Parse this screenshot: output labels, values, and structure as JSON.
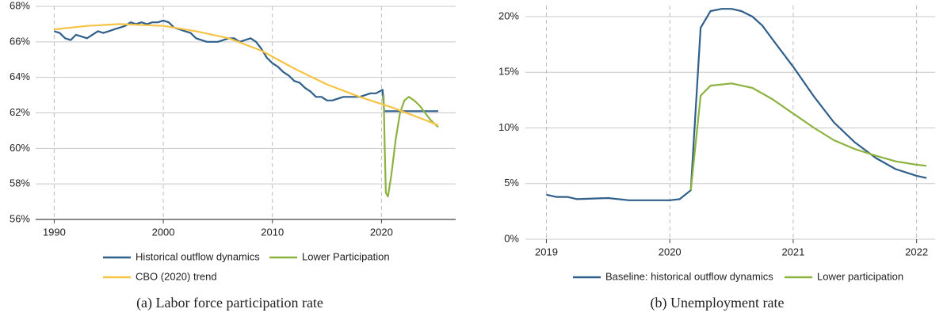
{
  "chart_data": [
    {
      "type": "line",
      "caption": "(a) Labor force participation rate",
      "xlim": [
        1988.3,
        2026.8
      ],
      "xticks": [
        1990,
        2000,
        2010,
        2020
      ],
      "ylim": [
        56,
        68
      ],
      "yticks": [
        {
          "value": 56,
          "label": "56%"
        },
        {
          "value": 58,
          "label": "58%"
        },
        {
          "value": 60,
          "label": "60%"
        },
        {
          "value": 62,
          "label": "62%"
        },
        {
          "value": 64,
          "label": "64%"
        },
        {
          "value": 66,
          "label": "66%"
        },
        {
          "value": 68,
          "label": "68%"
        }
      ],
      "grid": true,
      "series": [
        {
          "name": "Historical outflow dynamics",
          "color": "#2f5f8a",
          "x": [
            1990,
            1990.5,
            1991,
            1991.5,
            1992,
            1992.5,
            1993,
            1993.5,
            1994,
            1994.5,
            1995,
            1995.5,
            1996,
            1996.5,
            1997,
            1997.5,
            1998,
            1998.5,
            1999,
            1999.5,
            2000,
            2000.5,
            2001,
            2001.5,
            2002,
            2002.5,
            2003,
            2003.5,
            2004,
            2004.5,
            2005,
            2005.5,
            2006,
            2006.5,
            2007,
            2007.5,
            2008,
            2008.5,
            2009,
            2009.5,
            2010,
            2010.5,
            2011,
            2011.5,
            2012,
            2012.5,
            2013,
            2013.5,
            2014,
            2014.5,
            2015,
            2015.5,
            2016,
            2016.5,
            2017,
            2017.5,
            2018,
            2018.5,
            2019,
            2019.5,
            2020.1,
            2020.25,
            2025.2
          ],
          "values": [
            66.6,
            66.5,
            66.2,
            66.1,
            66.4,
            66.3,
            66.2,
            66.4,
            66.6,
            66.5,
            66.6,
            66.7,
            66.8,
            66.9,
            67.1,
            67.0,
            67.1,
            67.0,
            67.1,
            67.1,
            67.2,
            67.1,
            66.8,
            66.7,
            66.6,
            66.5,
            66.2,
            66.1,
            66.0,
            66.0,
            66.0,
            66.1,
            66.2,
            66.2,
            66.0,
            66.1,
            66.2,
            66.0,
            65.6,
            65.1,
            64.8,
            64.6,
            64.3,
            64.1,
            63.8,
            63.7,
            63.4,
            63.2,
            62.9,
            62.9,
            62.7,
            62.7,
            62.8,
            62.9,
            62.9,
            62.9,
            62.9,
            63.0,
            63.1,
            63.1,
            63.3,
            62.1,
            62.1
          ]
        },
        {
          "name": "Lower Participation",
          "color": "#8cb33f",
          "x": [
            2020.2,
            2020.3,
            2020.4,
            2020.6,
            2020.9,
            2021.3,
            2021.7,
            2022.1,
            2022.5,
            2023,
            2023.5,
            2024,
            2024.5,
            2025.2
          ],
          "values": [
            63.0,
            60.0,
            57.5,
            57.3,
            58.5,
            60.5,
            62.0,
            62.7,
            62.9,
            62.7,
            62.4,
            62.0,
            61.6,
            61.2
          ]
        },
        {
          "name": "CBO (2020) trend",
          "color": "#f6c445",
          "x": [
            1990,
            1993,
            1996,
            2000,
            2003,
            2006,
            2009,
            2012,
            2015,
            2018,
            2021,
            2024,
            2025.2
          ],
          "values": [
            66.7,
            66.9,
            67.0,
            66.9,
            66.6,
            66.2,
            65.5,
            64.5,
            63.6,
            62.9,
            62.3,
            61.6,
            61.3
          ]
        }
      ]
    },
    {
      "type": "line",
      "caption": "(b) Unemployment rate",
      "xlim": [
        2018.83,
        2022.15
      ],
      "xticks": [
        2019,
        2020,
        2021,
        2022
      ],
      "ylim": [
        0,
        21
      ],
      "yticks": [
        {
          "value": 0,
          "label": "0%"
        },
        {
          "value": 5,
          "label": "5%"
        },
        {
          "value": 10,
          "label": "10%"
        },
        {
          "value": 15,
          "label": "15%"
        },
        {
          "value": 20,
          "label": "20%"
        }
      ],
      "grid": true,
      "series": [
        {
          "name": "Baseline: historical outflow dynamics",
          "color": "#2f5f8a",
          "x": [
            2019,
            2019.08,
            2019.17,
            2019.25,
            2019.5,
            2019.67,
            2019.83,
            2020,
            2020.08,
            2020.17,
            2020.25,
            2020.33,
            2020.42,
            2020.5,
            2020.58,
            2020.67,
            2020.75,
            2020.83,
            2021,
            2021.17,
            2021.33,
            2021.5,
            2021.67,
            2021.83,
            2022,
            2022.08
          ],
          "values": [
            4.0,
            3.8,
            3.8,
            3.6,
            3.7,
            3.5,
            3.5,
            3.5,
            3.6,
            4.4,
            19.0,
            20.5,
            20.7,
            20.7,
            20.5,
            20.0,
            19.2,
            18.0,
            15.5,
            12.8,
            10.5,
            8.7,
            7.3,
            6.3,
            5.7,
            5.5
          ]
        },
        {
          "name": "Lower participation",
          "color": "#8cb33f",
          "x": [
            2020.17,
            2020.25,
            2020.33,
            2020.5,
            2020.67,
            2020.83,
            2021,
            2021.17,
            2021.33,
            2021.5,
            2021.67,
            2021.83,
            2022,
            2022.08
          ],
          "values": [
            4.4,
            12.9,
            13.8,
            14.0,
            13.6,
            12.6,
            11.3,
            10.0,
            8.9,
            8.1,
            7.5,
            7.0,
            6.7,
            6.6
          ]
        }
      ]
    }
  ]
}
